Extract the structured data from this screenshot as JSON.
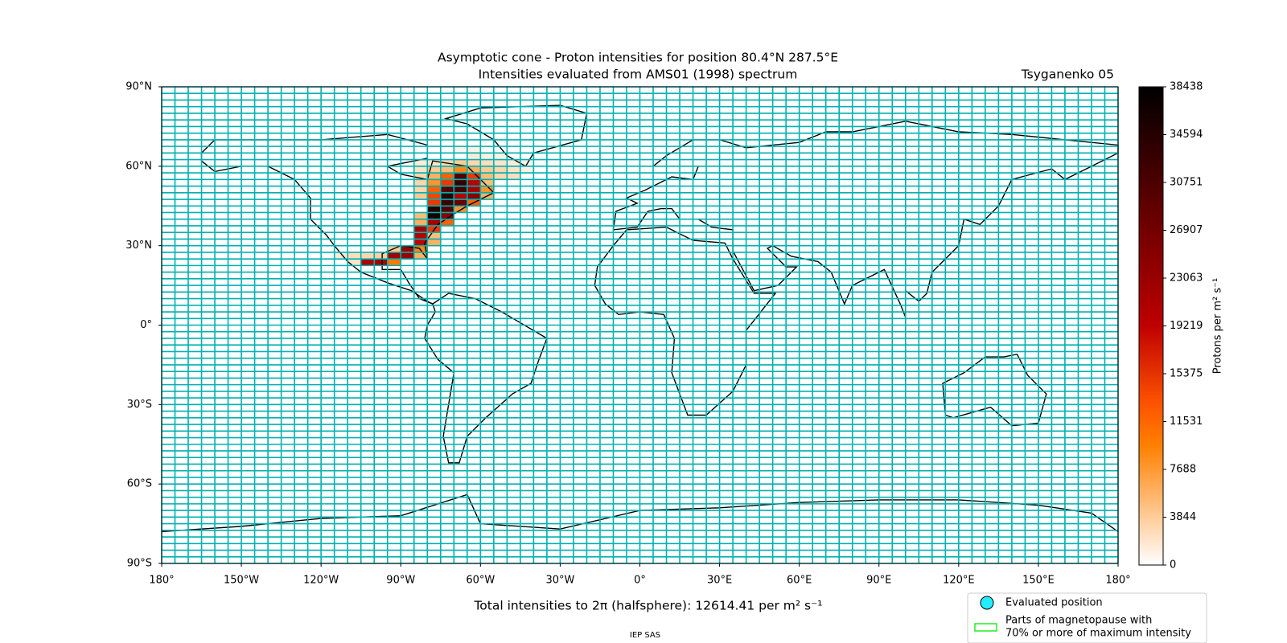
{
  "title": "Asymptotic cone - Proton intensities for position 80.4°N 287.5°E",
  "subtitle": "Intensities evaluated from AMS01 (1998) spectrum",
  "model": "Tsyganenko 05",
  "map": {
    "xlim": [
      -180,
      180
    ],
    "ylim": [
      -90,
      90
    ],
    "xticks": [
      {
        "value": -180,
        "label": "180°"
      },
      {
        "value": -150,
        "label": "150°W"
      },
      {
        "value": -120,
        "label": "120°W"
      },
      {
        "value": -90,
        "label": "90°W"
      },
      {
        "value": -60,
        "label": "60°W"
      },
      {
        "value": -30,
        "label": "30°W"
      },
      {
        "value": 0,
        "label": "0°"
      },
      {
        "value": 30,
        "label": "30°E"
      },
      {
        "value": 60,
        "label": "60°E"
      },
      {
        "value": 90,
        "label": "90°E"
      },
      {
        "value": 120,
        "label": "120°E"
      },
      {
        "value": 150,
        "label": "150°E"
      },
      {
        "value": 180,
        "label": "180°"
      }
    ],
    "yticks": [
      {
        "value": 90,
        "label": "90°N"
      },
      {
        "value": 60,
        "label": "60°N"
      },
      {
        "value": 30,
        "label": "30°N"
      },
      {
        "value": 0,
        "label": "0°"
      },
      {
        "value": -30,
        "label": "30°S"
      },
      {
        "value": -60,
        "label": "60°S"
      },
      {
        "value": -90,
        "label": "90°S"
      }
    ],
    "cells": [
      {
        "lon": -110,
        "lat": 22.5,
        "value": 2000
      },
      {
        "lon": -105,
        "lat": 22.5,
        "value": 21000
      },
      {
        "lon": -100,
        "lat": 22.5,
        "value": 22000
      },
      {
        "lon": -95,
        "lat": 22.5,
        "value": 10000
      },
      {
        "lon": -115,
        "lat": 25,
        "value": 1500
      },
      {
        "lon": -110,
        "lat": 25,
        "value": 2500
      },
      {
        "lon": -105,
        "lat": 25,
        "value": 3000
      },
      {
        "lon": -100,
        "lat": 25,
        "value": 3500
      },
      {
        "lon": -95,
        "lat": 25,
        "value": 22000
      },
      {
        "lon": -90,
        "lat": 25,
        "value": 23000
      },
      {
        "lon": -85,
        "lat": 25,
        "value": 6000
      },
      {
        "lon": -95,
        "lat": 27.5,
        "value": 4000
      },
      {
        "lon": -90,
        "lat": 27.5,
        "value": 23000
      },
      {
        "lon": -85,
        "lat": 27.5,
        "value": 9000
      },
      {
        "lon": -85,
        "lat": 30,
        "value": 19000
      },
      {
        "lon": -80,
        "lat": 30,
        "value": 6000
      },
      {
        "lon": -85,
        "lat": 32.5,
        "value": 20000
      },
      {
        "lon": -80,
        "lat": 32.5,
        "value": 5000
      },
      {
        "lon": -85,
        "lat": 35,
        "value": 22000
      },
      {
        "lon": -80,
        "lat": 35,
        "value": 15000
      },
      {
        "lon": -85,
        "lat": 37.5,
        "value": 6000
      },
      {
        "lon": -80,
        "lat": 37.5,
        "value": 22000
      },
      {
        "lon": -75,
        "lat": 37.5,
        "value": 12000
      },
      {
        "lon": -85,
        "lat": 40,
        "value": 5000
      },
      {
        "lon": -80,
        "lat": 40,
        "value": 36000
      },
      {
        "lon": -75,
        "lat": 40,
        "value": 25000
      },
      {
        "lon": -80,
        "lat": 42.5,
        "value": 35000
      },
      {
        "lon": -75,
        "lat": 42.5,
        "value": 30000
      },
      {
        "lon": -70,
        "lat": 42.5,
        "value": 8000
      },
      {
        "lon": -80,
        "lat": 45,
        "value": 15000
      },
      {
        "lon": -75,
        "lat": 45,
        "value": 32000
      },
      {
        "lon": -70,
        "lat": 45,
        "value": 28000
      },
      {
        "lon": -65,
        "lat": 45,
        "value": 12000
      },
      {
        "lon": -85,
        "lat": 47.5,
        "value": 4000
      },
      {
        "lon": -80,
        "lat": 47.5,
        "value": 14000
      },
      {
        "lon": -75,
        "lat": 47.5,
        "value": 34000
      },
      {
        "lon": -70,
        "lat": 47.5,
        "value": 20000
      },
      {
        "lon": -65,
        "lat": 47.5,
        "value": 25000
      },
      {
        "lon": -60,
        "lat": 47.5,
        "value": 6000
      },
      {
        "lon": -85,
        "lat": 50,
        "value": 3000
      },
      {
        "lon": -80,
        "lat": 50,
        "value": 12000
      },
      {
        "lon": -75,
        "lat": 50,
        "value": 30000
      },
      {
        "lon": -70,
        "lat": 50,
        "value": 32000
      },
      {
        "lon": -65,
        "lat": 50,
        "value": 22000
      },
      {
        "lon": -60,
        "lat": 50,
        "value": 8000
      },
      {
        "lon": -85,
        "lat": 52.5,
        "value": 3000
      },
      {
        "lon": -80,
        "lat": 52.5,
        "value": 8000
      },
      {
        "lon": -75,
        "lat": 52.5,
        "value": 15000
      },
      {
        "lon": -70,
        "lat": 52.5,
        "value": 33000
      },
      {
        "lon": -65,
        "lat": 52.5,
        "value": 20000
      },
      {
        "lon": -60,
        "lat": 52.5,
        "value": 5000
      },
      {
        "lon": -85,
        "lat": 55,
        "value": 3000
      },
      {
        "lon": -80,
        "lat": 55,
        "value": 6000
      },
      {
        "lon": -75,
        "lat": 55,
        "value": 12000
      },
      {
        "lon": -70,
        "lat": 55,
        "value": 30000
      },
      {
        "lon": -65,
        "lat": 55,
        "value": 15000
      },
      {
        "lon": -60,
        "lat": 55,
        "value": 5000
      },
      {
        "lon": -55,
        "lat": 55,
        "value": 3000
      },
      {
        "lon": -50,
        "lat": 55,
        "value": 2500
      },
      {
        "lon": -85,
        "lat": 57.5,
        "value": 2000
      },
      {
        "lon": -80,
        "lat": 57.5,
        "value": 4000
      },
      {
        "lon": -75,
        "lat": 57.5,
        "value": 5000
      },
      {
        "lon": -70,
        "lat": 57.5,
        "value": 9000
      },
      {
        "lon": -65,
        "lat": 57.5,
        "value": 6000
      },
      {
        "lon": -60,
        "lat": 57.5,
        "value": 4000
      },
      {
        "lon": -55,
        "lat": 57.5,
        "value": 3000
      },
      {
        "lon": -50,
        "lat": 57.5,
        "value": 2000
      },
      {
        "lon": -45,
        "lat": 57.5,
        "value": 1000
      },
      {
        "lon": -85,
        "lat": 60,
        "value": 1500
      },
      {
        "lon": -80,
        "lat": 60,
        "value": 2000
      },
      {
        "lon": -75,
        "lat": 60,
        "value": 3000
      },
      {
        "lon": -70,
        "lat": 60,
        "value": 4000
      },
      {
        "lon": -65,
        "lat": 60,
        "value": 3000
      },
      {
        "lon": -60,
        "lat": 60,
        "value": 2500
      },
      {
        "lon": -55,
        "lat": 60,
        "value": 2000
      },
      {
        "lon": -50,
        "lat": 60,
        "value": 1500
      },
      {
        "lon": -45,
        "lat": 60,
        "value": 800
      },
      {
        "lon": -65,
        "lat": 62.5,
        "value": 1500
      },
      {
        "lon": -60,
        "lat": 62.5,
        "value": 1200
      },
      {
        "lon": -55,
        "lat": 62.5,
        "value": 1000
      },
      {
        "lon": -70,
        "lat": 65,
        "value": 800
      },
      {
        "lon": -65,
        "lat": 65,
        "value": 1000
      }
    ]
  },
  "colorbar": {
    "label": "Protons per m² s⁻¹",
    "lim": [
      0,
      38438
    ],
    "ticks": [
      0,
      3844,
      7688,
      11531,
      15375,
      19219,
      23063,
      26907,
      30751,
      34594,
      38438
    ]
  },
  "total": "Total intensities to 2π (halfsphere): 12614.41 per m² s⁻¹",
  "legend": {
    "position": "Evaluated position",
    "magnetopause": [
      "Parts of magnetopause with",
      "70% or more of maximum intensity"
    ]
  },
  "footer": "IEP SAS"
}
